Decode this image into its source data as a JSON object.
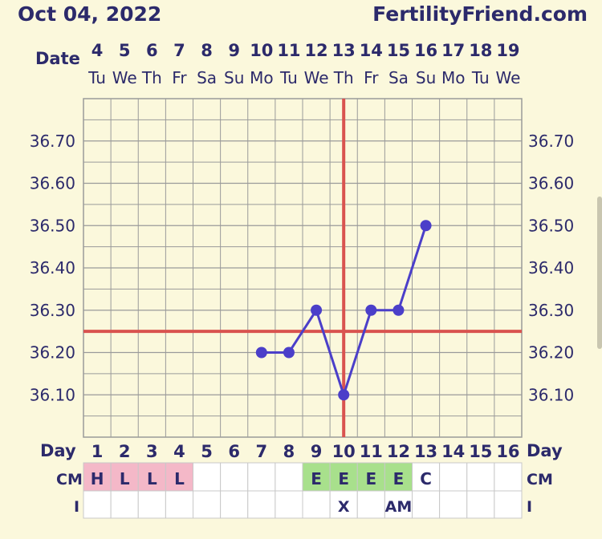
{
  "header": {
    "date": "Oct 04, 2022",
    "site": "FertilityFriend.com"
  },
  "labels": {
    "date_row": "Date",
    "day_row": "Day",
    "cm_row": "CM",
    "i_row": "I"
  },
  "colors": {
    "background": "#fbf8dc",
    "grid": "#9a9a9a",
    "line": "#4b3fc9",
    "coverline": "#d9534f",
    "text": "#2c2a6b",
    "cm_pink": "#f4b8c8",
    "cm_green": "#a8e08c"
  },
  "chart_data": {
    "type": "line",
    "dates": [
      "4",
      "5",
      "6",
      "7",
      "8",
      "9",
      "10",
      "11",
      "12",
      "13",
      "14",
      "15",
      "16",
      "17",
      "18",
      "19"
    ],
    "weekdays": [
      "Tu",
      "We",
      "Th",
      "Fr",
      "Sa",
      "Su",
      "Mo",
      "Tu",
      "We",
      "Th",
      "Fr",
      "Sa",
      "Su",
      "Mo",
      "Tu",
      "We"
    ],
    "cycle_days": [
      "1",
      "2",
      "3",
      "4",
      "5",
      "6",
      "7",
      "8",
      "9",
      "10",
      "11",
      "12",
      "13",
      "14",
      "15",
      "16"
    ],
    "yticks": [
      "36.10",
      "36.20",
      "36.30",
      "36.40",
      "36.50",
      "36.60",
      "36.70"
    ],
    "ylim": [
      36.0,
      36.8
    ],
    "series": [
      {
        "values": [
          null,
          null,
          null,
          null,
          null,
          null,
          36.2,
          36.2,
          36.3,
          36.1,
          36.3,
          36.3,
          36.5,
          null,
          null,
          null
        ]
      }
    ],
    "coverline": 36.25,
    "ovulation_day_index": 9,
    "cm": [
      "H",
      "L",
      "L",
      "L",
      "",
      "",
      "",
      "",
      "E",
      "E",
      "E",
      "E",
      "C",
      "",
      "",
      ""
    ],
    "cm_colors": [
      "pink",
      "pink",
      "pink",
      "pink",
      "",
      "",
      "",
      "",
      "green",
      "green",
      "green",
      "green",
      "",
      "",
      "",
      ""
    ],
    "intercourse": [
      "",
      "",
      "",
      "",
      "",
      "",
      "",
      "",
      "",
      "X",
      "",
      "AM",
      "",
      "",
      "",
      ""
    ]
  }
}
